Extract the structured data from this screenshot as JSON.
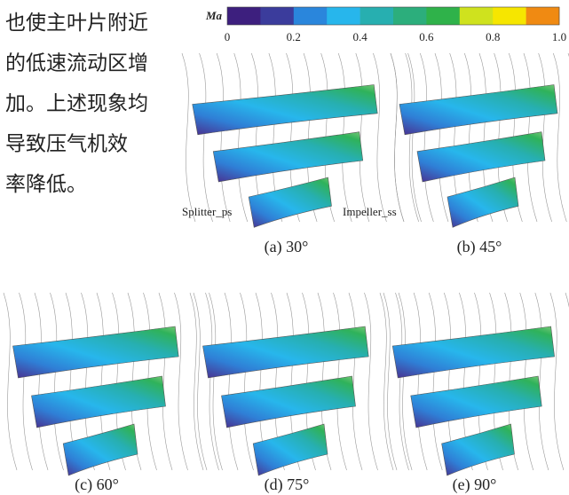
{
  "text": {
    "lines": [
      "也使主叶片附近",
      "的低速流动区增",
      "加。上述现象均",
      "导致压气机效",
      "率降低。"
    ]
  },
  "figure": {
    "colorbar": {
      "label": "Ma",
      "colors": [
        "#3d1f7e",
        "#3b3c9c",
        "#2a86dc",
        "#27b6ec",
        "#27afb0",
        "#2cae7c",
        "#2fb24a",
        "#cfe21e",
        "#f6e600",
        "#f08a12"
      ],
      "ticks": [
        0,
        0.2,
        0.4,
        0.6,
        0.8,
        {
          "value": 1,
          "label": "1.0"
        }
      ],
      "range": [
        0,
        1
      ]
    },
    "annotations": [
      "Splitter_ps",
      "Impeller_ss"
    ],
    "captions": [
      "(a) 30°",
      "(b) 45°",
      "(c) 60°",
      "(d) 75°",
      "(e) 90°"
    ]
  }
}
